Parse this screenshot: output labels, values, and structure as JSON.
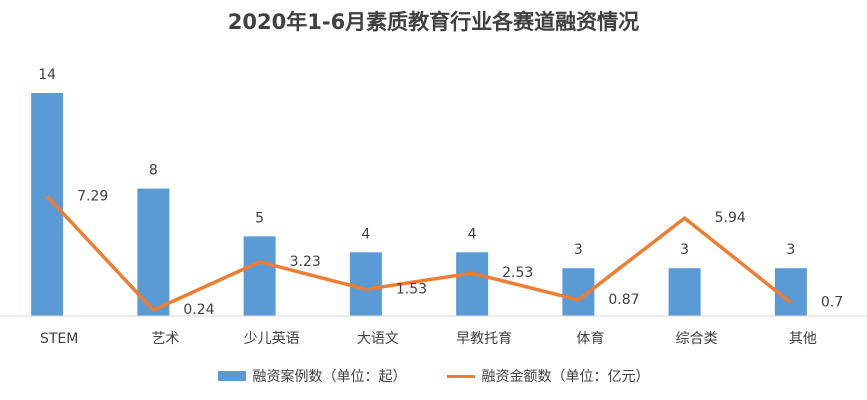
{
  "chart_data": {
    "type": "bar",
    "title": "2020年1-6月素质教育行业各赛道融资情况",
    "categories": [
      "STEM",
      "艺术",
      "少儿英语",
      "大语文",
      "早教托育",
      "体育",
      "综合类",
      "其他"
    ],
    "series": [
      {
        "name": "融资案例数（单位：起）",
        "type": "bar",
        "values": [
          14,
          8,
          5,
          4,
          4,
          3,
          3,
          3
        ],
        "labels": [
          "14",
          "8",
          "5",
          "4",
          "4",
          "3",
          "3",
          "3"
        ]
      },
      {
        "name": "融资金额数（单位：亿元）",
        "type": "line",
        "values": [
          7.29,
          0.24,
          3.23,
          1.53,
          2.53,
          0.87,
          5.94,
          0.7
        ],
        "labels": [
          "7.29",
          "0.24",
          "3.23",
          "1.53",
          "2.53",
          "0.87",
          "5.94",
          "0.7"
        ]
      }
    ],
    "bar_ylim": [
      0,
      14
    ],
    "line_ylim": [
      0,
      14
    ],
    "colors": {
      "bar": "#5b9bd5",
      "line": "#ed7d31",
      "axis": "#d9d9d9",
      "text": "#404040"
    },
    "legend_position": "bottom",
    "grid": false
  }
}
